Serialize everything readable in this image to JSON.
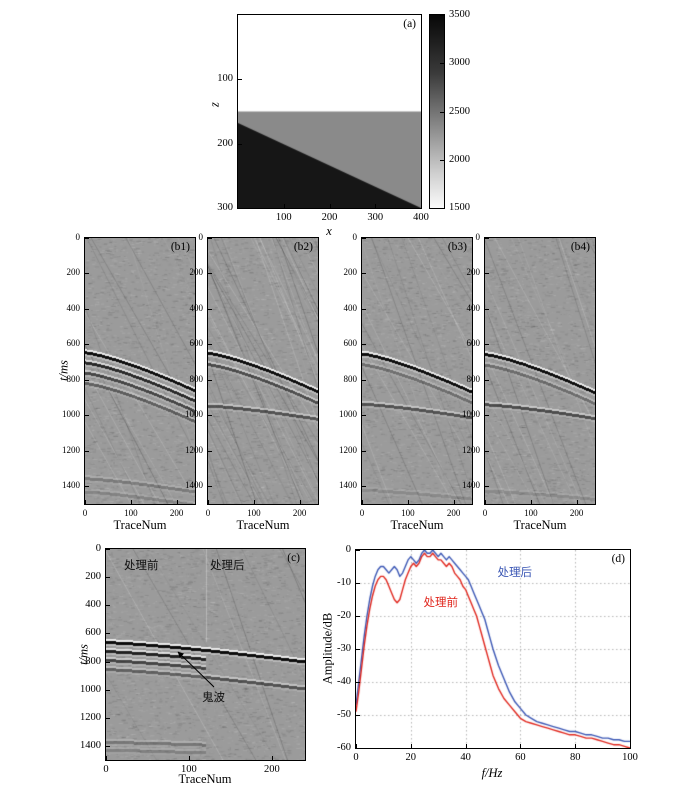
{
  "figure": {
    "annotations": {
      "before": "处理前",
      "after": "处理后",
      "ghost": "鬼波"
    },
    "colors": {
      "after_line": "#3a56b4",
      "before_line": "#e0261d",
      "seismic_bg": "#9b9b9b"
    }
  },
  "chart_data": [
    {
      "id": "model",
      "type": "heatmap",
      "label": "(a)",
      "xlabel": "x",
      "ylabel": "z",
      "xlim": [
        0,
        400
      ],
      "zlim": [
        0,
        300
      ],
      "x_ticks": [
        100,
        200,
        300,
        400
      ],
      "z_ticks": [
        100,
        200,
        300
      ],
      "colorbar": {
        "min": 1500,
        "max": 3500,
        "ticks": [
          3500,
          3000,
          2500,
          2000,
          1500
        ]
      },
      "regions": [
        {
          "name": "layer-1",
          "velocity": 1500,
          "color": "#ffffff",
          "z_top": 0,
          "z_bottom": 150
        },
        {
          "name": "layer-2",
          "velocity": 2500,
          "color": "#8a8a8a",
          "z_top": 150,
          "z_bottom": 300
        },
        {
          "name": "layer-3-wedge",
          "velocity": 3500,
          "color": "#161616",
          "polygon": [
            [
              0,
              168
            ],
            [
              400,
              300
            ],
            [
              0,
              300
            ]
          ]
        }
      ]
    },
    {
      "id": "b1",
      "type": "seismic",
      "label": "(b1)",
      "xlabel": "TraceNum",
      "ylabel": "t/ms",
      "xlim": [
        0,
        240
      ],
      "tlim": [
        0,
        1500
      ],
      "x_ticks": [
        0,
        100,
        200
      ],
      "t_ticks": [
        0,
        200,
        400,
        600,
        800,
        1000,
        1200,
        1400
      ],
      "dip_lines": 14,
      "events": [
        {
          "t0": 645,
          "t1": 860,
          "amp": 1.0
        },
        {
          "t0": 702,
          "t1": 918,
          "amp": 0.8
        },
        {
          "t0": 760,
          "t1": 976,
          "amp": 0.6
        },
        {
          "t0": 818,
          "t1": 1034,
          "amp": 0.42
        },
        {
          "t0": 1355,
          "t1": 1430,
          "amp": 0.22
        },
        {
          "t0": 1430,
          "t1": 1505,
          "amp": 0.16
        }
      ]
    },
    {
      "id": "b2",
      "type": "seismic",
      "label": "(b2)",
      "xlabel": "TraceNum",
      "ylabel": "t/ms",
      "xlim": [
        0,
        240
      ],
      "tlim": [
        0,
        1500
      ],
      "x_ticks": [
        0,
        100,
        200
      ],
      "t_ticks": [
        0,
        200,
        400,
        600,
        800,
        1000,
        1200,
        1400
      ],
      "dip_lines": 60,
      "events": [
        {
          "t0": 648,
          "t1": 866,
          "amp": 1.0
        },
        {
          "t0": 712,
          "t1": 930,
          "amp": 0.55
        },
        {
          "t0": 945,
          "t1": 1020,
          "amp": 0.5
        }
      ]
    },
    {
      "id": "b3",
      "type": "seismic",
      "label": "(b3)",
      "xlabel": "TraceNum",
      "ylabel": "t/ms",
      "xlim": [
        0,
        240
      ],
      "tlim": [
        0,
        1500
      ],
      "x_ticks": [
        0,
        100,
        200
      ],
      "t_ticks": [
        0,
        200,
        400,
        600,
        800,
        1000,
        1200,
        1400
      ],
      "dip_lines": 18,
      "events": [
        {
          "t0": 652,
          "t1": 868,
          "amp": 1.0
        },
        {
          "t0": 712,
          "t1": 928,
          "amp": 0.3
        },
        {
          "t0": 935,
          "t1": 1012,
          "amp": 0.5
        },
        {
          "t0": 1420,
          "t1": 1470,
          "amp": 0.12
        }
      ]
    },
    {
      "id": "b4",
      "type": "seismic",
      "label": "(b4)",
      "xlabel": "TraceNum",
      "ylabel": "t/ms",
      "xlim": [
        0,
        240
      ],
      "tlim": [
        0,
        1500
      ],
      "x_ticks": [
        0,
        100,
        200
      ],
      "t_ticks": [
        0,
        200,
        400,
        600,
        800,
        1000,
        1200,
        1400
      ],
      "dip_lines": 20,
      "events": [
        {
          "t0": 655,
          "t1": 872,
          "amp": 1.0
        },
        {
          "t0": 716,
          "t1": 933,
          "amp": 0.32
        },
        {
          "t0": 938,
          "t1": 1016,
          "amp": 0.55
        },
        {
          "t0": 1425,
          "t1": 1472,
          "amp": 0.12
        }
      ]
    },
    {
      "id": "c",
      "type": "seismic",
      "label": "(c)",
      "xlabel": "TraceNum",
      "ylabel": "t/ms",
      "xlim": [
        0,
        240
      ],
      "tlim": [
        0,
        1500
      ],
      "x_ticks": [
        0,
        100,
        200
      ],
      "t_ticks": [
        0,
        200,
        400,
        600,
        800,
        1000,
        1200,
        1400
      ],
      "dip_lines": 10,
      "seam": {
        "x": 120,
        "t": 660
      },
      "events": [
        {
          "t0": 662,
          "t1": 800,
          "amp": 1.0,
          "x0": 0,
          "x1": 120
        },
        {
          "t0": 726,
          "t1": 864,
          "amp": 0.85,
          "x0": 0,
          "x1": 120
        },
        {
          "t0": 790,
          "t1": 928,
          "amp": 0.6,
          "x0": 0,
          "x1": 120
        },
        {
          "t0": 854,
          "t1": 992,
          "amp": 0.4,
          "x0": 0,
          "x1": 120
        },
        {
          "t0": 1372,
          "t1": 1418,
          "amp": 0.25,
          "x0": 0,
          "x1": 120
        },
        {
          "t0": 1428,
          "t1": 1474,
          "amp": 0.18,
          "x0": 0,
          "x1": 120
        },
        {
          "t0": 662,
          "t1": 800,
          "amp": 1.0,
          "x0": 120,
          "x1": 240
        },
        {
          "t0": 854,
          "t1": 992,
          "amp": 0.5,
          "x0": 120,
          "x1": 240
        }
      ]
    },
    {
      "id": "spectrum",
      "type": "line",
      "label": "(d)",
      "xlabel": "f/Hz",
      "ylabel": "Amplitude/dB",
      "xlim": [
        0,
        100
      ],
      "ylim": [
        0,
        -60
      ],
      "x_ticks": [
        0,
        20,
        40,
        60,
        80,
        100
      ],
      "y_ticks": [
        0,
        -10,
        -20,
        -30,
        -40,
        -50,
        -60
      ],
      "grid": true,
      "legend": [
        {
          "name": "处理后",
          "color": "#3a56b4",
          "pos": [
            52,
            -7
          ]
        },
        {
          "name": "处理前",
          "color": "#e0261d",
          "pos": [
            25,
            -16
          ]
        }
      ],
      "series": [
        {
          "name": "处理后",
          "color": "#3a56b4",
          "x": [
            0,
            1,
            2,
            3,
            4,
            5,
            6,
            7,
            8,
            9,
            10,
            11,
            12,
            13,
            14,
            15,
            16,
            17,
            18,
            19,
            20,
            21,
            22,
            23,
            24,
            25,
            26,
            27,
            28,
            29,
            30,
            31,
            32,
            33,
            34,
            35,
            36,
            37,
            38,
            39,
            40,
            41,
            42,
            43,
            44,
            45,
            46,
            47,
            48,
            49,
            50,
            52,
            54,
            56,
            58,
            60,
            62,
            64,
            66,
            68,
            70,
            72,
            74,
            76,
            78,
            80,
            82,
            84,
            86,
            88,
            90,
            92,
            94,
            96,
            98,
            100
          ],
          "y": [
            -47,
            -40,
            -33,
            -26,
            -20,
            -15,
            -11,
            -8,
            -6,
            -5,
            -5,
            -6,
            -7,
            -6,
            -5,
            -6,
            -8,
            -7,
            -5,
            -3,
            -2,
            -3,
            -4,
            -3,
            -1,
            0,
            -1,
            -1,
            0,
            -1,
            -2,
            -1,
            -2,
            -3,
            -2,
            -3,
            -4,
            -5,
            -6,
            -7,
            -8,
            -9,
            -11,
            -13,
            -15,
            -17,
            -19,
            -21,
            -24,
            -27,
            -30,
            -35,
            -39,
            -43,
            -46,
            -48,
            -50,
            -51,
            -52,
            -52.5,
            -53,
            -53.5,
            -54,
            -54.5,
            -55,
            -55,
            -55.5,
            -56,
            -56,
            -56.5,
            -57,
            -57,
            -57.5,
            -57.5,
            -58,
            -58
          ]
        },
        {
          "name": "处理前",
          "color": "#e0261d",
          "x": [
            0,
            1,
            2,
            3,
            4,
            5,
            6,
            7,
            8,
            9,
            10,
            11,
            12,
            13,
            14,
            15,
            16,
            17,
            18,
            19,
            20,
            21,
            22,
            23,
            24,
            25,
            26,
            27,
            28,
            29,
            30,
            31,
            32,
            33,
            34,
            35,
            36,
            37,
            38,
            39,
            40,
            41,
            42,
            43,
            44,
            45,
            46,
            47,
            48,
            49,
            50,
            52,
            54,
            56,
            58,
            60,
            62,
            64,
            66,
            68,
            70,
            72,
            74,
            76,
            78,
            80,
            82,
            84,
            86,
            88,
            90,
            92,
            94,
            96,
            98,
            100
          ],
          "y": [
            -49,
            -43,
            -36,
            -29,
            -23,
            -18,
            -14,
            -11,
            -9,
            -8,
            -8,
            -9,
            -11,
            -13,
            -15,
            -16,
            -15,
            -12,
            -9,
            -7,
            -5,
            -4,
            -5,
            -4,
            -2,
            -1,
            -2,
            -2,
            -1,
            -2,
            -3,
            -3,
            -4,
            -5,
            -4,
            -5,
            -7,
            -8,
            -9,
            -11,
            -12,
            -14,
            -16,
            -18,
            -20,
            -23,
            -26,
            -29,
            -32,
            -35,
            -38,
            -42,
            -45,
            -47,
            -49,
            -51,
            -52,
            -52.5,
            -53,
            -53.5,
            -54,
            -54.5,
            -55,
            -55.5,
            -56,
            -56,
            -56.5,
            -57,
            -57,
            -57.5,
            -58,
            -58.5,
            -59,
            -59,
            -59.5,
            -60
          ]
        }
      ]
    }
  ]
}
